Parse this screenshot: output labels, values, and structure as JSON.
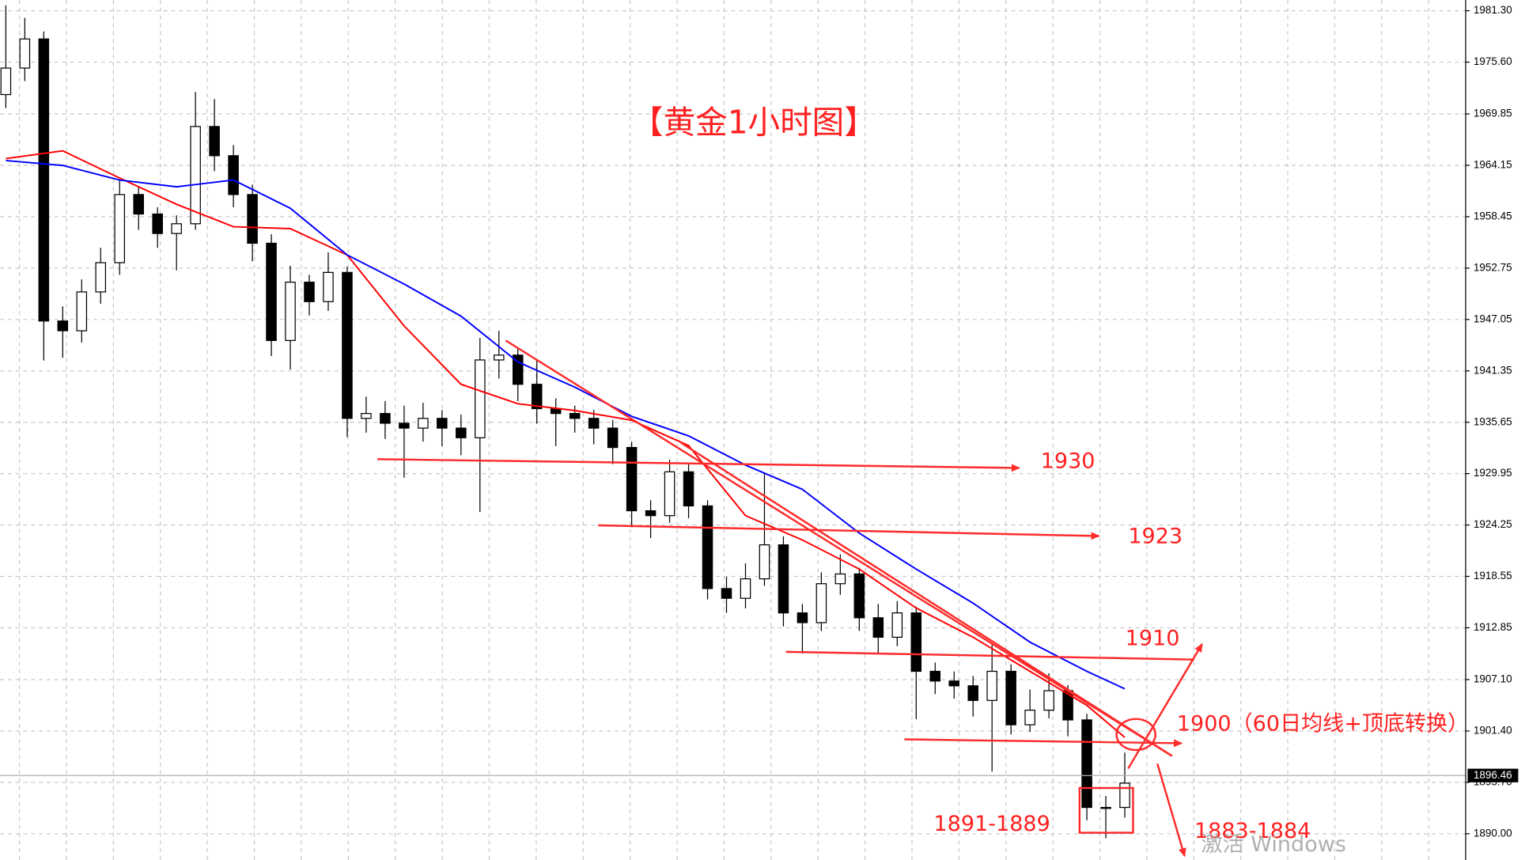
{
  "chart_data": {
    "type": "candlestick",
    "title": "【黄金1小时图】",
    "ylim": [
      1887.09,
      1982.49
    ],
    "yticks": [
      {
        "value": 1981.3,
        "label": "1981.30"
      },
      {
        "value": 1975.6,
        "label": "1975.60"
      },
      1969.85,
      1964.15,
      1958.45,
      1952.75,
      1947.05,
      1941.35,
      1935.65,
      1929.95,
      1924.25,
      1918.55,
      1912.85,
      {
        "value": 1907.1,
        "label": "1907.10"
      },
      {
        "value": 1901.4,
        "label": "1901.40"
      },
      {
        "value": 1895.7,
        "label": "1895.70"
      },
      {
        "value": 1890.0,
        "label": "1890.00"
      }
    ],
    "grid": true,
    "up_color": "#ffffff",
    "down_color": "#000000",
    "open": [
      1972.0,
      1974.94,
      1978.17,
      1946.88,
      1945.8,
      1950.11,
      1953.35,
      1960.91,
      1958.75,
      1956.59,
      1957.67,
      1968.46,
      1965.22,
      1960.91,
      1955.51,
      1944.72,
      1951.19,
      1949.03,
      1952.27,
      1936.08,
      1936.62,
      1935.54,
      1935.0,
      1936.08,
      1935.0,
      1933.93,
      1942.56,
      1943.1,
      1939.86,
      1937.16,
      1936.62,
      1936.08,
      1935.0,
      1932.85,
      1925.83,
      1925.29,
      1930.15,
      1926.37,
      1917.2,
      1916.12,
      1918.28,
      1922.05,
      1914.5,
      1913.42,
      1917.74,
      1918.82,
      1913.96,
      1911.8,
      1914.5,
      1908.02,
      1906.94,
      1906.41,
      1904.79,
      1908.02,
      1902.09,
      1903.71,
      1905.87,
      1902.63,
      1892.92,
      1892.92
    ],
    "high": [
      1981.9,
      1980.5,
      1979.0,
      1948.5,
      1951.5,
      1955.0,
      1962.5,
      1961.8,
      1959.5,
      1958.6,
      1972.3,
      1971.5,
      1966.4,
      1962.0,
      1956.5,
      1953.0,
      1952.0,
      1954.5,
      1952.9,
      1938.5,
      1938.0,
      1937.5,
      1937.8,
      1937.0,
      1936.5,
      1945.0,
      1945.8,
      1943.9,
      1942.5,
      1938.3,
      1937.5,
      1937.0,
      1935.9,
      1933.5,
      1927.0,
      1931.5,
      1931.0,
      1927.0,
      1918.5,
      1920.0,
      1930.0,
      1923.0,
      1915.5,
      1919.0,
      1921.0,
      1919.5,
      1915.5,
      1915.8,
      1915.2,
      1909.0,
      1908.0,
      1907.5,
      1911.0,
      1908.8,
      1906.0,
      1907.8,
      1906.5,
      1903.3,
      1894.2,
      1899.0
    ],
    "low": [
      1970.5,
      1973.5,
      1942.5,
      1942.8,
      1944.5,
      1948.8,
      1952.0,
      1957.0,
      1955.0,
      1952.5,
      1957.0,
      1963.5,
      1959.5,
      1953.5,
      1943.0,
      1941.5,
      1947.5,
      1948.0,
      1934.0,
      1934.5,
      1933.8,
      1929.5,
      1933.5,
      1933.0,
      1932.0,
      1925.7,
      1940.5,
      1938.0,
      1935.5,
      1933.0,
      1934.5,
      1933.2,
      1931.0,
      1924.0,
      1922.8,
      1924.5,
      1925.0,
      1916.0,
      1914.5,
      1915.0,
      1917.5,
      1913.0,
      1910.0,
      1912.5,
      1916.5,
      1912.5,
      1910.0,
      1910.8,
      1902.7,
      1905.5,
      1905.0,
      1903.0,
      1896.9,
      1901.0,
      1901.3,
      1902.8,
      1900.8,
      1891.5,
      1889.5,
      1891.8
    ],
    "close": [
      1974.94,
      1978.17,
      1946.88,
      1945.8,
      1950.11,
      1953.35,
      1960.91,
      1958.75,
      1956.59,
      1957.67,
      1968.46,
      1965.22,
      1960.91,
      1955.51,
      1944.72,
      1951.19,
      1949.03,
      1952.27,
      1936.08,
      1936.62,
      1935.54,
      1935.0,
      1936.08,
      1935.0,
      1933.93,
      1942.56,
      1943.1,
      1939.86,
      1937.16,
      1936.62,
      1936.08,
      1935.0,
      1932.85,
      1925.83,
      1925.29,
      1930.15,
      1926.37,
      1917.2,
      1916.12,
      1918.28,
      1922.05,
      1914.5,
      1913.42,
      1917.74,
      1918.82,
      1913.96,
      1911.8,
      1914.5,
      1908.02,
      1906.94,
      1906.41,
      1904.79,
      1908.02,
      1902.09,
      1903.71,
      1905.87,
      1902.63,
      1892.92,
      1892.92,
      1895.61
    ],
    "moving_averages": [
      {
        "color": "#ff0000",
        "x": [
          0,
          3,
          6,
          9,
          12,
          15,
          18,
          21,
          24,
          27,
          30,
          33,
          36,
          39,
          42,
          45,
          48,
          51,
          54,
          57,
          59
        ],
        "values": [
          1964.9,
          1965.76,
          1962.74,
          1959.83,
          1957.34,
          1957.13,
          1954.21,
          1946.34,
          1939.86,
          1937.7,
          1936.95,
          1935.87,
          1933.06,
          1925.29,
          1922.59,
          1919.36,
          1915.04,
          1911.8,
          1908.02,
          1904.25,
          1900.69
        ]
      },
      {
        "color": "#0000ff",
        "x": [
          0,
          3,
          6,
          9,
          12,
          15,
          18,
          21,
          24,
          27,
          30,
          33,
          36,
          39,
          42,
          45,
          48,
          51,
          54,
          57,
          59
        ],
        "values": [
          1964.68,
          1964.14,
          1962.52,
          1961.77,
          1962.52,
          1959.39,
          1954.21,
          1950.98,
          1947.42,
          1942.34,
          1939.54,
          1936.3,
          1934.14,
          1930.9,
          1928.21,
          1923.35,
          1919.36,
          1915.58,
          1911.26,
          1908.02,
          1906.08
        ]
      }
    ],
    "last_price": 1896.46,
    "annotations": [
      "1930",
      "1923",
      "1910",
      "1900（60日均线+顶底转换）",
      "1891-1889",
      "1883-1884"
    ],
    "watermark": "激活 Windows"
  }
}
